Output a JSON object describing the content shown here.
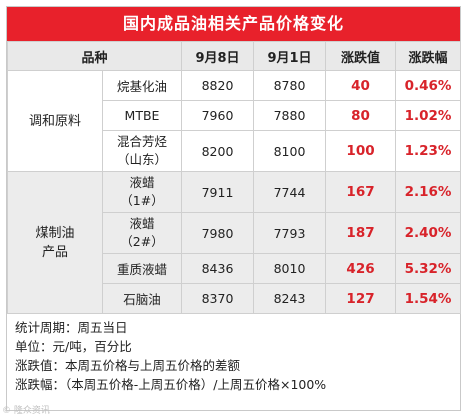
{
  "title": "国内成品油相关产品价格变化",
  "header": [
    "品种",
    "9月8日",
    "9月1日",
    "涨跌值",
    "涨跌幅"
  ],
  "groups": [
    {
      "name_lines": [
        "调和原料"
      ],
      "rows": [
        {
          "product": [
            "烷基化油"
          ],
          "sep8": "8820",
          "sep1": "8780",
          "change": "40",
          "pct": "0.46%"
        },
        {
          "product": [
            "MTBE"
          ],
          "sep8": "7960",
          "sep1": "7880",
          "change": "80",
          "pct": "1.02%"
        },
        {
          "product": [
            "混合芳烃",
            "（山东）"
          ],
          "sep8": "8200",
          "sep1": "8100",
          "change": "100",
          "pct": "1.23%"
        }
      ]
    },
    {
      "name_lines": [
        "煤制油",
        "产品"
      ],
      "rows": [
        {
          "product": [
            "液蜡",
            "（1#）"
          ],
          "sep8": "7911",
          "sep1": "7744",
          "change": "167",
          "pct": "2.16%"
        },
        {
          "product": [
            "液蜡",
            "（2#）"
          ],
          "sep8": "7980",
          "sep1": "7793",
          "change": "187",
          "pct": "2.40%"
        },
        {
          "product": [
            "重质液蜡"
          ],
          "sep8": "8436",
          "sep1": "8010",
          "change": "426",
          "pct": "5.32%"
        },
        {
          "product": [
            "石脑油"
          ],
          "sep8": "8370",
          "sep1": "8243",
          "change": "127",
          "pct": "1.54%"
        }
      ]
    }
  ],
  "notes": [
    "统计周期：周五当日",
    "单位：元/吨，百分比",
    "涨跌值：本周五价格与上周五价格的差额",
    "涨跌幅：（本周五价格-上周五价格）/上周五价格×100%"
  ],
  "watermark": "© 隆众资讯"
}
